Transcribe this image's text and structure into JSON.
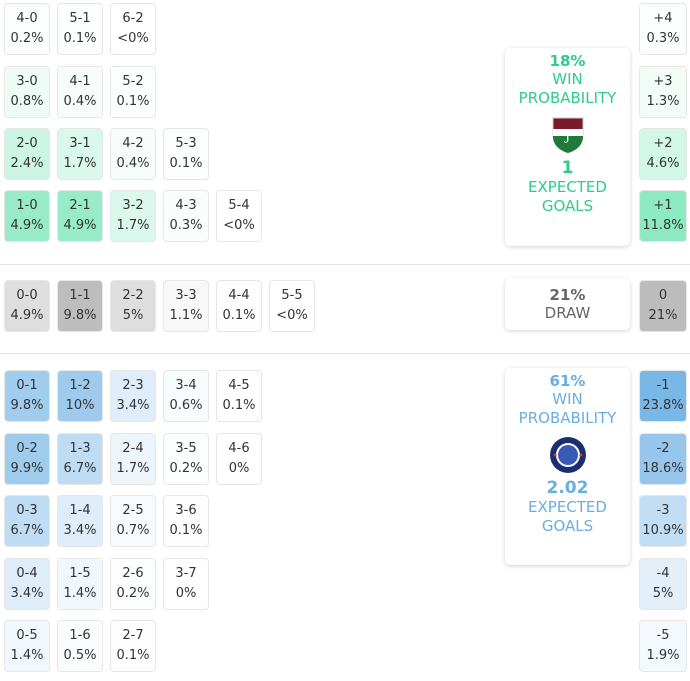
{
  "colors": {
    "home": "#2ecc8a",
    "away": "#6aaee0",
    "draw": "#666666",
    "home_fill": "#8ae9c1",
    "away_fill": "#77b6e6",
    "draw_fill": "#bcbcbc"
  },
  "home_scores": [
    [
      {
        "s": "4-0",
        "p": "0.2%"
      },
      {
        "s": "5-1",
        "p": "0.1%"
      },
      {
        "s": "6-2",
        "p": "<0%"
      }
    ],
    [
      {
        "s": "3-0",
        "p": "0.8%"
      },
      {
        "s": "4-1",
        "p": "0.4%"
      },
      {
        "s": "5-2",
        "p": "0.1%"
      }
    ],
    [
      {
        "s": "2-0",
        "p": "2.4%"
      },
      {
        "s": "3-1",
        "p": "1.7%"
      },
      {
        "s": "4-2",
        "p": "0.4%"
      },
      {
        "s": "5-3",
        "p": "0.1%"
      }
    ],
    [
      {
        "s": "1-0",
        "p": "4.9%"
      },
      {
        "s": "2-1",
        "p": "4.9%"
      },
      {
        "s": "3-2",
        "p": "1.7%"
      },
      {
        "s": "4-3",
        "p": "0.3%"
      },
      {
        "s": "5-4",
        "p": "<0%"
      }
    ]
  ],
  "draw_scores": [
    {
      "s": "0-0",
      "p": "4.9%"
    },
    {
      "s": "1-1",
      "p": "9.8%"
    },
    {
      "s": "2-2",
      "p": "5%"
    },
    {
      "s": "3-3",
      "p": "1.1%"
    },
    {
      "s": "4-4",
      "p": "0.1%"
    },
    {
      "s": "5-5",
      "p": "<0%"
    }
  ],
  "away_scores": [
    [
      {
        "s": "0-1",
        "p": "9.8%"
      },
      {
        "s": "1-2",
        "p": "10%"
      },
      {
        "s": "2-3",
        "p": "3.4%"
      },
      {
        "s": "3-4",
        "p": "0.6%"
      },
      {
        "s": "4-5",
        "p": "0.1%"
      }
    ],
    [
      {
        "s": "0-2",
        "p": "9.9%"
      },
      {
        "s": "1-3",
        "p": "6.7%"
      },
      {
        "s": "2-4",
        "p": "1.7%"
      },
      {
        "s": "3-5",
        "p": "0.2%"
      },
      {
        "s": "4-6",
        "p": "0%"
      }
    ],
    [
      {
        "s": "0-3",
        "p": "6.7%"
      },
      {
        "s": "1-4",
        "p": "3.4%"
      },
      {
        "s": "2-5",
        "p": "0.7%"
      },
      {
        "s": "3-6",
        "p": "0.1%"
      }
    ],
    [
      {
        "s": "0-4",
        "p": "3.4%"
      },
      {
        "s": "1-5",
        "p": "1.4%"
      },
      {
        "s": "2-6",
        "p": "0.2%"
      },
      {
        "s": "3-7",
        "p": "0%"
      }
    ],
    [
      {
        "s": "0-5",
        "p": "1.4%"
      },
      {
        "s": "1-6",
        "p": "0.5%"
      },
      {
        "s": "2-7",
        "p": "0.1%"
      }
    ]
  ],
  "home_margins": [
    {
      "s": "+4",
      "p": "0.3%"
    },
    {
      "s": "+3",
      "p": "1.3%"
    },
    {
      "s": "+2",
      "p": "4.6%"
    },
    {
      "s": "+1",
      "p": "11.8%"
    }
  ],
  "draw_margin": {
    "s": "0",
    "p": "21%"
  },
  "away_margins": [
    {
      "s": "-1",
      "p": "23.8%"
    },
    {
      "s": "-2",
      "p": "18.6%"
    },
    {
      "s": "-3",
      "p": "10.9%"
    },
    {
      "s": "-4",
      "p": "5%"
    },
    {
      "s": "-5",
      "p": "1.9%"
    }
  ],
  "home_card": {
    "win_pct": "18%",
    "win_label_1": "WIN",
    "win_label_2": "PROBABILITY",
    "xg": "1",
    "xg_label_1": "EXPECTED",
    "xg_label_2": "GOALS",
    "crest_icon": "fluminense-crest-icon"
  },
  "draw_card": {
    "pct": "21%",
    "label": "DRAW"
  },
  "away_card": {
    "win_pct": "61%",
    "win_label_1": "WIN",
    "win_label_2": "PROBABILITY",
    "xg": "2.02",
    "xg_label_1": "EXPECTED",
    "xg_label_2": "GOALS",
    "crest_icon": "chelsea-crest-icon"
  }
}
